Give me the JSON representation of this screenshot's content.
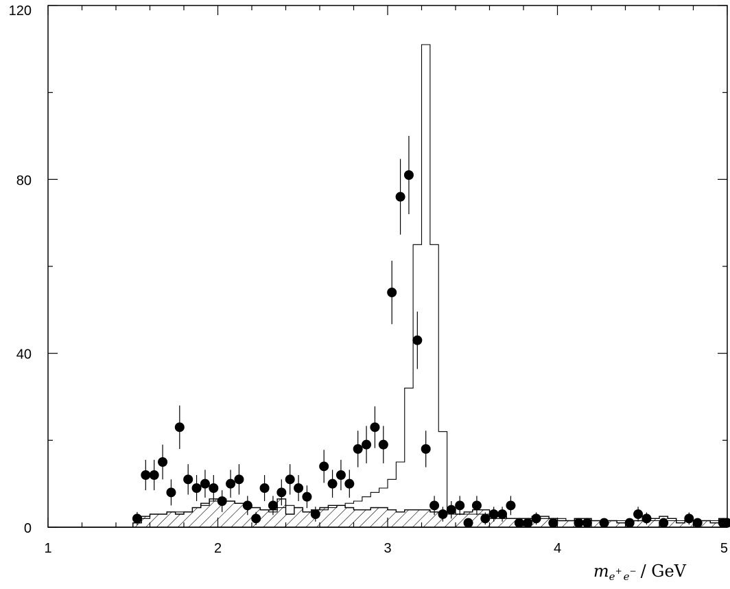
{
  "chart_data": {
    "type": "scatter",
    "title": "",
    "xlabel": "m_{e+e-} / GeV",
    "xlabel_parts": {
      "var": "m",
      "sub": "e",
      "sup1": "+",
      "sub2": "e",
      "sup2": "−",
      "unit": "/ GeV"
    },
    "ylabel": "",
    "xlim": [
      1,
      5
    ],
    "ylim": [
      0,
      120
    ],
    "x_ticks": [
      "1",
      "2",
      "3",
      "4",
      "5"
    ],
    "y_ticks": [
      "0",
      "40",
      "80",
      "120"
    ],
    "grid": false,
    "series": [
      {
        "kind": "points-with-errors",
        "points": [
          [
            1.525,
            2,
            1.5
          ],
          [
            1.575,
            12,
            3.5
          ],
          [
            1.625,
            12,
            3.5
          ],
          [
            1.675,
            15,
            4
          ],
          [
            1.725,
            8,
            3
          ],
          [
            1.775,
            23,
            5
          ],
          [
            1.825,
            11,
            3.5
          ],
          [
            1.875,
            9,
            3
          ],
          [
            1.925,
            10,
            3.2
          ],
          [
            1.975,
            9,
            3
          ],
          [
            2.025,
            6,
            2.5
          ],
          [
            2.075,
            10,
            3.2
          ],
          [
            2.125,
            11,
            3.5
          ],
          [
            2.175,
            5,
            2.2
          ],
          [
            2.225,
            2,
            1.5
          ],
          [
            2.275,
            9,
            3
          ],
          [
            2.325,
            5,
            2.2
          ],
          [
            2.375,
            8,
            3
          ],
          [
            2.425,
            11,
            3.5
          ],
          [
            2.475,
            9,
            3
          ],
          [
            2.525,
            7,
            2.6
          ],
          [
            2.575,
            3,
            1.7
          ],
          [
            2.625,
            14,
            3.8
          ],
          [
            2.675,
            10,
            3.2
          ],
          [
            2.725,
            12,
            3.5
          ],
          [
            2.775,
            10,
            3.2
          ],
          [
            2.825,
            18,
            4.2
          ],
          [
            2.875,
            19,
            4.3
          ],
          [
            2.925,
            23,
            4.8
          ],
          [
            2.975,
            19,
            4.3
          ],
          [
            3.025,
            54,
            7.3
          ],
          [
            3.075,
            76,
            8.7
          ],
          [
            3.125,
            81,
            9
          ],
          [
            3.175,
            43,
            6.6
          ],
          [
            3.225,
            18,
            4.2
          ],
          [
            3.275,
            5,
            2.2
          ],
          [
            3.325,
            3,
            1.7
          ],
          [
            3.375,
            4,
            2
          ],
          [
            3.425,
            5,
            2.2
          ],
          [
            3.475,
            1,
            1
          ],
          [
            3.525,
            5,
            2.2
          ],
          [
            3.575,
            2,
            1.4
          ],
          [
            3.625,
            3,
            1.7
          ],
          [
            3.675,
            3,
            1.7
          ],
          [
            3.725,
            5,
            2.2
          ],
          [
            3.775,
            1,
            1
          ],
          [
            3.825,
            1,
            1
          ],
          [
            3.875,
            2,
            1.4
          ],
          [
            3.975,
            1,
            1
          ],
          [
            4.125,
            1,
            1
          ],
          [
            4.175,
            1,
            1
          ],
          [
            4.275,
            1,
            1
          ],
          [
            4.425,
            1,
            1
          ],
          [
            4.475,
            3,
            1.7
          ],
          [
            4.525,
            2,
            1.4
          ],
          [
            4.625,
            1,
            1
          ],
          [
            4.775,
            2,
            1.4
          ],
          [
            4.825,
            1,
            1
          ],
          [
            4.975,
            1,
            1
          ],
          [
            5.0,
            1,
            1
          ]
        ]
      },
      {
        "kind": "step-histogram",
        "bin_width": 0.05,
        "start": 1.5,
        "values": [
          1,
          2,
          3,
          3,
          3.5,
          3.5,
          3.5,
          4.5,
          5,
          6,
          6.5,
          6,
          5.5,
          5,
          4.5,
          4,
          3.5,
          4.5,
          5,
          4.5,
          3.5,
          4,
          4,
          4.5,
          5,
          5.5,
          6,
          7,
          8,
          9,
          11,
          15,
          32,
          65,
          111,
          65,
          22,
          3,
          3,
          3,
          3,
          3,
          2,
          2,
          2,
          2,
          2,
          2,
          2,
          2,
          2,
          1.5,
          1.5,
          1.5,
          1.5,
          1.5,
          1.5,
          1.5,
          1.5,
          1.5,
          1.5,
          1.5,
          1.5,
          1.5,
          1.5,
          1.5,
          1.5,
          1.5,
          1.5,
          1.5,
          1.5,
          1.5
        ]
      },
      {
        "kind": "hatched-histogram",
        "bin_width": 0.05,
        "start": 1.5,
        "values": [
          1,
          2.5,
          3,
          3,
          3.5,
          3,
          3.5,
          4.5,
          5.5,
          6.5,
          6,
          6,
          5.5,
          5,
          4.5,
          4,
          4,
          6.5,
          3,
          4.5,
          3.5,
          4,
          4.5,
          5,
          5,
          4.5,
          4,
          4,
          4.5,
          4.5,
          4,
          3.5,
          4,
          4,
          4,
          3.5,
          3.5,
          3.5,
          3,
          3.5,
          4,
          4,
          3,
          2.5,
          2,
          2,
          2,
          2.5,
          2.5,
          2,
          1.5,
          1.5,
          2,
          2,
          1.5,
          1.5,
          1.5,
          1,
          1,
          1.5,
          2,
          2,
          2.5,
          2,
          1,
          1.5,
          1.5,
          1.5,
          1,
          2,
          2,
          2,
          1.5,
          1.5,
          1.5,
          1,
          1,
          1.5,
          1,
          1
        ]
      }
    ]
  }
}
